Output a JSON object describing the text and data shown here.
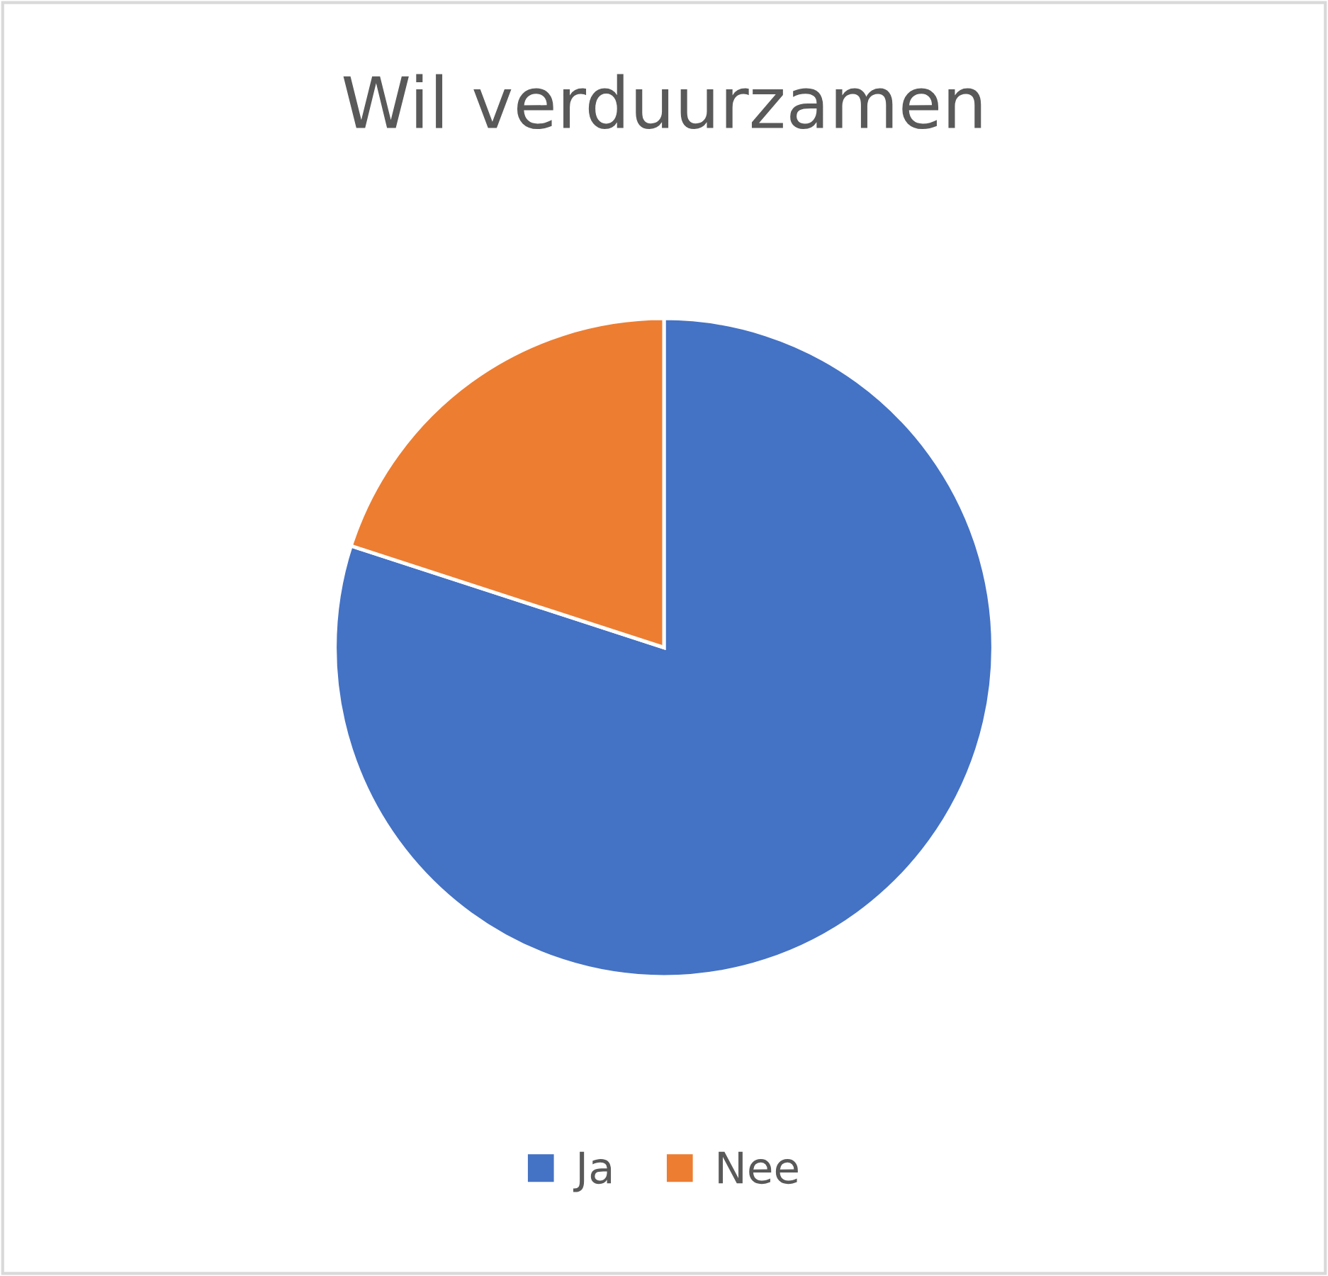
{
  "chart_data": {
    "type": "pie",
    "title": "Wil verduurzamen",
    "categories": [
      "Ja",
      "Nee"
    ],
    "values": [
      80,
      20
    ],
    "colors": [
      "#4472c4",
      "#ed7d31"
    ],
    "legend": "bottom"
  }
}
